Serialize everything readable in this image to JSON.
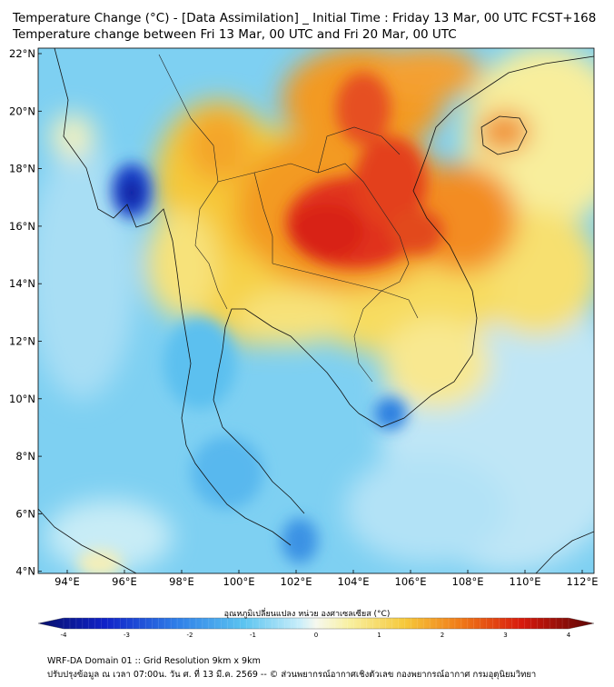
{
  "title_line1": "Temperature Change (°C) - [Data Assimilation] _ Initial Time : Friday 13 Mar, 00 UTC FCST+168",
  "title_line2": "Temperature change between Fri 13 Mar, 00 UTC and Fri 20 Mar, 00 UTC",
  "lat_ticks": [
    "22°N",
    "20°N",
    "18°N",
    "16°N",
    "14°N",
    "12°N",
    "10°N",
    "8°N",
    "6°N",
    "4°N"
  ],
  "lon_ticks": [
    "94°E",
    "96°E",
    "98°E",
    "100°E",
    "102°E",
    "104°E",
    "106°E",
    "108°E",
    "110°E",
    "112°E"
  ],
  "colorbar": {
    "label": "อุณหภูมิเปลี่ยนแปลง หน่วย องศาเซลเซียส (°C)",
    "ticks": [
      "-4",
      "-3",
      "-2",
      "-1",
      "0",
      "1",
      "2",
      "3",
      "4"
    ],
    "range": [
      -4,
      4
    ]
  },
  "footer_line1": "WRF-DA Domain 01 :: Grid Resolution 9km x 9km",
  "footer_line2": "ปรับปรุงข้อมูล ณ เวลา 07:00น. วัน ศ. ที่ 13 มี.ค. 2569 -- © ส่วนพยากรณ์อากาศเชิงตัวเลข กองพยากรณ์อากาศ กรมอุตุนิยมวิทยา",
  "colors": {
    "cold_extreme": "#0a2a9c",
    "cold": "#4aaee8",
    "neutral": "#f4f7e8",
    "warm": "#f6c23a",
    "hot": "#e02010",
    "hot_extreme": "#6a0a0a"
  }
}
